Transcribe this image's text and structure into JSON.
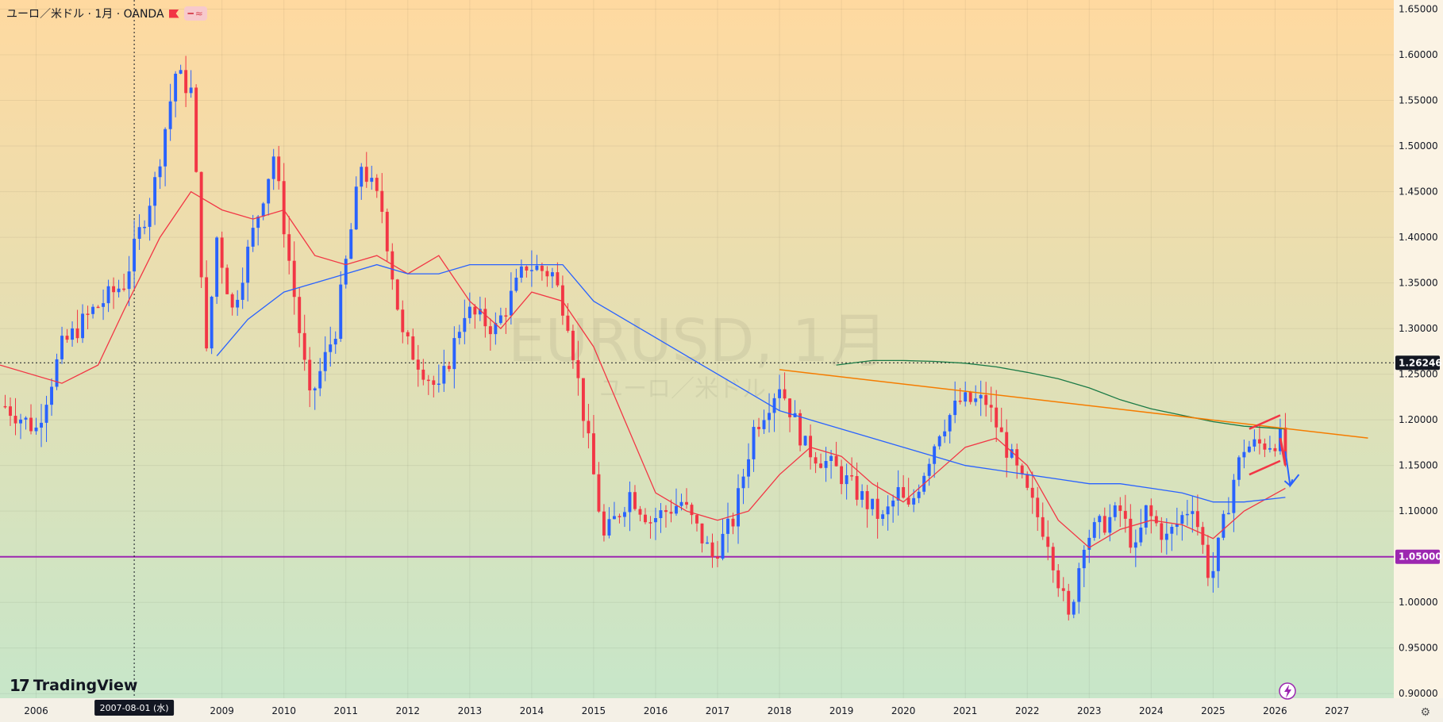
{
  "header": {
    "symbol_text": "ユーロ／米ドル · 1月 · OANDA",
    "chip_1": "━",
    "chip_2": "≈"
  },
  "watermark": {
    "line1": "EURUSD, 1月",
    "line2": "ユーロ／米ドル"
  },
  "brand": {
    "logo_text": "TradingView",
    "logo_mark": "17"
  },
  "crosshair": {
    "date_label": "2007-08-01 (水)",
    "price_value": 1.26246,
    "price_label": "1.26246"
  },
  "support": {
    "price": 1.05,
    "label": "1.05000",
    "color": "#9c27b0"
  },
  "colors": {
    "up": "#2962ff",
    "down": "#f23645",
    "ma_fast": "#f23645",
    "ma_mid": "#2962ff",
    "ma_slow": "#1b7a46",
    "trendline": "#f57c00",
    "bg_top": "#ffd9a0",
    "bg_bottom": "#c7e6c9"
  },
  "icons": {
    "flag": "flag-icon",
    "lightning": "lightning-icon",
    "settings": "gear-icon"
  },
  "chart_data": {
    "type": "candlestick",
    "title": "ユーロ／米ドル · 1月 · OANDA",
    "x_ticks": [
      "2006",
      "2009",
      "2010",
      "2011",
      "2012",
      "2013",
      "2014",
      "2015",
      "2016",
      "2017",
      "2018",
      "2019",
      "2020",
      "2021",
      "2022",
      "2023",
      "2024",
      "2025",
      "2026",
      "2027"
    ],
    "y_ticks": [
      "1.65000",
      "1.60000",
      "1.55000",
      "1.50000",
      "1.45000",
      "1.40000",
      "1.35000",
      "1.30000",
      "1.25000",
      "1.20000",
      "1.15000",
      "1.10000",
      "1.05000",
      "1.00000",
      "0.95000",
      "0.90000"
    ],
    "y_range": [
      0.895,
      1.66
    ],
    "x_range": [
      "2005-06",
      "2027-12"
    ],
    "candle_anchors_close": [
      [
        "2005-07",
        1.215
      ],
      [
        "2006-01",
        1.19
      ],
      [
        "2006-06",
        1.28
      ],
      [
        "2006-12",
        1.32
      ],
      [
        "2007-06",
        1.35
      ],
      [
        "2007-12",
        1.46
      ],
      [
        "2008-04",
        1.58
      ],
      [
        "2008-07",
        1.56
      ],
      [
        "2008-10",
        1.27
      ],
      [
        "2008-12",
        1.4
      ],
      [
        "2009-03",
        1.32
      ],
      [
        "2009-11",
        1.49
      ],
      [
        "2010-06",
        1.22
      ],
      [
        "2010-11",
        1.3
      ],
      [
        "2011-04",
        1.48
      ],
      [
        "2011-08",
        1.43
      ],
      [
        "2011-12",
        1.29
      ],
      [
        "2012-07",
        1.23
      ],
      [
        "2012-12",
        1.32
      ],
      [
        "2013-06",
        1.3
      ],
      [
        "2013-12",
        1.37
      ],
      [
        "2014-05",
        1.36
      ],
      [
        "2014-08",
        1.31
      ],
      [
        "2015-03",
        1.07
      ],
      [
        "2015-08",
        1.12
      ],
      [
        "2015-12",
        1.09
      ],
      [
        "2016-06",
        1.11
      ],
      [
        "2016-12",
        1.05
      ],
      [
        "2017-04",
        1.09
      ],
      [
        "2017-08",
        1.19
      ],
      [
        "2018-01",
        1.24
      ],
      [
        "2018-06",
        1.17
      ],
      [
        "2018-12",
        1.145
      ],
      [
        "2019-09",
        1.09
      ],
      [
        "2019-12",
        1.12
      ],
      [
        "2020-02",
        1.1
      ],
      [
        "2020-08",
        1.19
      ],
      [
        "2020-12",
        1.22
      ],
      [
        "2021-05",
        1.22
      ],
      [
        "2021-12",
        1.13
      ],
      [
        "2022-05",
        1.07
      ],
      [
        "2022-09",
        0.98
      ],
      [
        "2022-12",
        1.07
      ],
      [
        "2023-07",
        1.1
      ],
      [
        "2023-10",
        1.055
      ],
      [
        "2023-12",
        1.1
      ],
      [
        "2024-04",
        1.07
      ],
      [
        "2024-09",
        1.11
      ],
      [
        "2024-12",
        1.035
      ],
      [
        "2025-01",
        1.035
      ],
      [
        "2025-05",
        1.135
      ],
      [
        "2025-07",
        1.17
      ],
      [
        "2025-12",
        1.175
      ],
      [
        "2026-02",
        1.18
      ],
      [
        "2026-03",
        1.155
      ]
    ],
    "moving_averages": [
      {
        "name": "",
        "color": "#f23645",
        "points": [
          [
            "2005-06",
            1.26
          ],
          [
            "2006-06",
            1.24
          ],
          [
            "2007-01",
            1.26
          ],
          [
            "2007-06",
            1.32
          ],
          [
            "2008-01",
            1.4
          ],
          [
            "2008-07",
            1.45
          ],
          [
            "2009-01",
            1.43
          ],
          [
            "2009-07",
            1.42
          ],
          [
            "2010-01",
            1.43
          ],
          [
            "2010-07",
            1.38
          ],
          [
            "2011-01",
            1.37
          ],
          [
            "2011-07",
            1.38
          ],
          [
            "2012-01",
            1.36
          ],
          [
            "2012-07",
            1.38
          ],
          [
            "2013-01",
            1.33
          ],
          [
            "2013-07",
            1.3
          ],
          [
            "2014-01",
            1.34
          ],
          [
            "2014-07",
            1.33
          ],
          [
            "2015-01",
            1.28
          ],
          [
            "2015-07",
            1.2
          ],
          [
            "2016-01",
            1.12
          ],
          [
            "2016-07",
            1.1
          ],
          [
            "2017-01",
            1.09
          ],
          [
            "2017-07",
            1.1
          ],
          [
            "2018-01",
            1.14
          ],
          [
            "2018-07",
            1.17
          ],
          [
            "2019-01",
            1.16
          ],
          [
            "2019-07",
            1.13
          ],
          [
            "2020-01",
            1.11
          ],
          [
            "2020-07",
            1.14
          ],
          [
            "2021-01",
            1.17
          ],
          [
            "2021-07",
            1.18
          ],
          [
            "2022-01",
            1.15
          ],
          [
            "2022-07",
            1.09
          ],
          [
            "2023-01",
            1.06
          ],
          [
            "2023-07",
            1.08
          ],
          [
            "2024-01",
            1.09
          ],
          [
            "2024-07",
            1.085
          ],
          [
            "2025-01",
            1.07
          ],
          [
            "2025-07",
            1.1
          ],
          [
            "2026-03",
            1.125
          ]
        ]
      },
      {
        "name": "",
        "color": "#2962ff",
        "points": [
          [
            "2008-12",
            1.27
          ],
          [
            "2009-06",
            1.31
          ],
          [
            "2010-01",
            1.34
          ],
          [
            "2010-07",
            1.35
          ],
          [
            "2011-01",
            1.36
          ],
          [
            "2011-07",
            1.37
          ],
          [
            "2012-01",
            1.36
          ],
          [
            "2012-07",
            1.36
          ],
          [
            "2013-01",
            1.37
          ],
          [
            "2013-07",
            1.37
          ],
          [
            "2014-01",
            1.37
          ],
          [
            "2014-07",
            1.37
          ],
          [
            "2015-01",
            1.33
          ],
          [
            "2015-07",
            1.31
          ],
          [
            "2016-01",
            1.29
          ],
          [
            "2016-07",
            1.27
          ],
          [
            "2017-01",
            1.25
          ],
          [
            "2017-07",
            1.23
          ],
          [
            "2018-01",
            1.21
          ],
          [
            "2018-07",
            1.2
          ],
          [
            "2019-01",
            1.19
          ],
          [
            "2019-07",
            1.18
          ],
          [
            "2020-01",
            1.17
          ],
          [
            "2020-07",
            1.16
          ],
          [
            "2021-01",
            1.15
          ],
          [
            "2021-07",
            1.145
          ],
          [
            "2022-01",
            1.14
          ],
          [
            "2022-07",
            1.135
          ],
          [
            "2023-01",
            1.13
          ],
          [
            "2023-07",
            1.13
          ],
          [
            "2024-01",
            1.125
          ],
          [
            "2024-07",
            1.12
          ],
          [
            "2025-01",
            1.11
          ],
          [
            "2025-07",
            1.11
          ],
          [
            "2026-03",
            1.115
          ]
        ]
      },
      {
        "name": "",
        "color": "#1b7a46",
        "points": [
          [
            "2018-12",
            1.26
          ],
          [
            "2019-07",
            1.265
          ],
          [
            "2020-01",
            1.265
          ],
          [
            "2020-07",
            1.264
          ],
          [
            "2021-01",
            1.262
          ],
          [
            "2021-07",
            1.258
          ],
          [
            "2022-01",
            1.252
          ],
          [
            "2022-07",
            1.245
          ],
          [
            "2023-01",
            1.235
          ],
          [
            "2023-07",
            1.222
          ],
          [
            "2024-01",
            1.212
          ],
          [
            "2024-07",
            1.205
          ],
          [
            "2025-01",
            1.198
          ],
          [
            "2025-07",
            1.193
          ],
          [
            "2026-03",
            1.19
          ]
        ]
      }
    ],
    "drawings": {
      "trendline": {
        "from": [
          "2018-01",
          1.255
        ],
        "to": [
          "2027-07",
          1.18
        ]
      },
      "pattern_upper": {
        "from": [
          "2025-08",
          1.19
        ],
        "to": [
          "2026-02",
          1.205
        ]
      },
      "pattern_lower": {
        "from": [
          "2025-08",
          1.14
        ],
        "to": [
          "2026-02",
          1.155
        ]
      },
      "down_arrow_red": {
        "from": [
          "2026-02",
          1.18
        ],
        "to": [
          "2026-03",
          1.15
        ]
      },
      "down_arrow_blue": {
        "from": [
          "2026-03",
          1.155
        ],
        "to": [
          "2026-05",
          1.14
        ]
      }
    },
    "grid": true
  }
}
